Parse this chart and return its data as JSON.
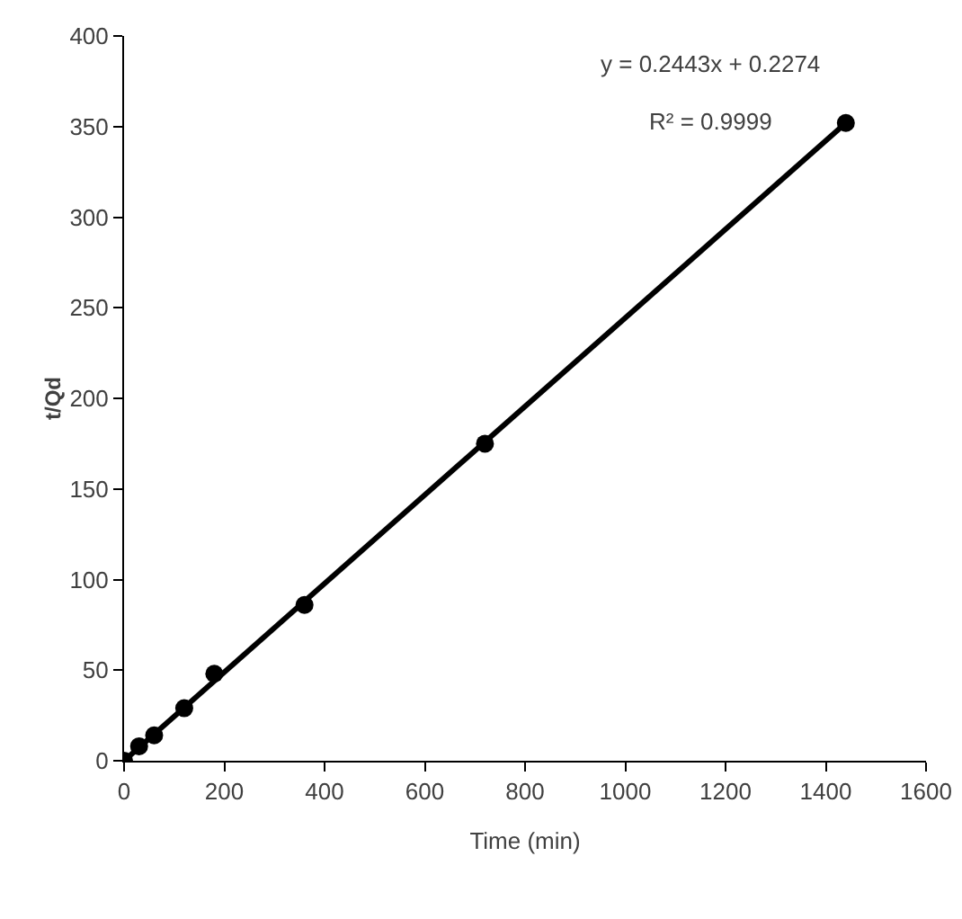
{
  "chart_data": {
    "type": "scatter",
    "xlabel": "Time (min)",
    "ylabel": "t/Qd",
    "xlim": [
      0,
      1600
    ],
    "ylim": [
      0,
      400
    ],
    "xticks": [
      0,
      200,
      400,
      600,
      800,
      1000,
      1200,
      1400,
      1600
    ],
    "yticks": [
      0,
      50,
      100,
      150,
      200,
      250,
      300,
      350,
      400
    ],
    "grid": false,
    "marker": "circle",
    "series": [
      {
        "color": "#000000",
        "x": [
          0,
          30,
          60,
          120,
          180,
          360,
          720,
          1440
        ],
        "values": [
          0,
          8,
          14,
          29,
          48,
          86,
          175,
          352
        ]
      },
      {
        "type": "line",
        "color": "#000000",
        "marker": "none",
        "line_style": "solid",
        "x": [
          0,
          1440
        ],
        "values": [
          0,
          352
        ]
      }
    ],
    "annotations": [
      "y = 0.2443x + 0.2274",
      "R² = 0.9999"
    ]
  }
}
